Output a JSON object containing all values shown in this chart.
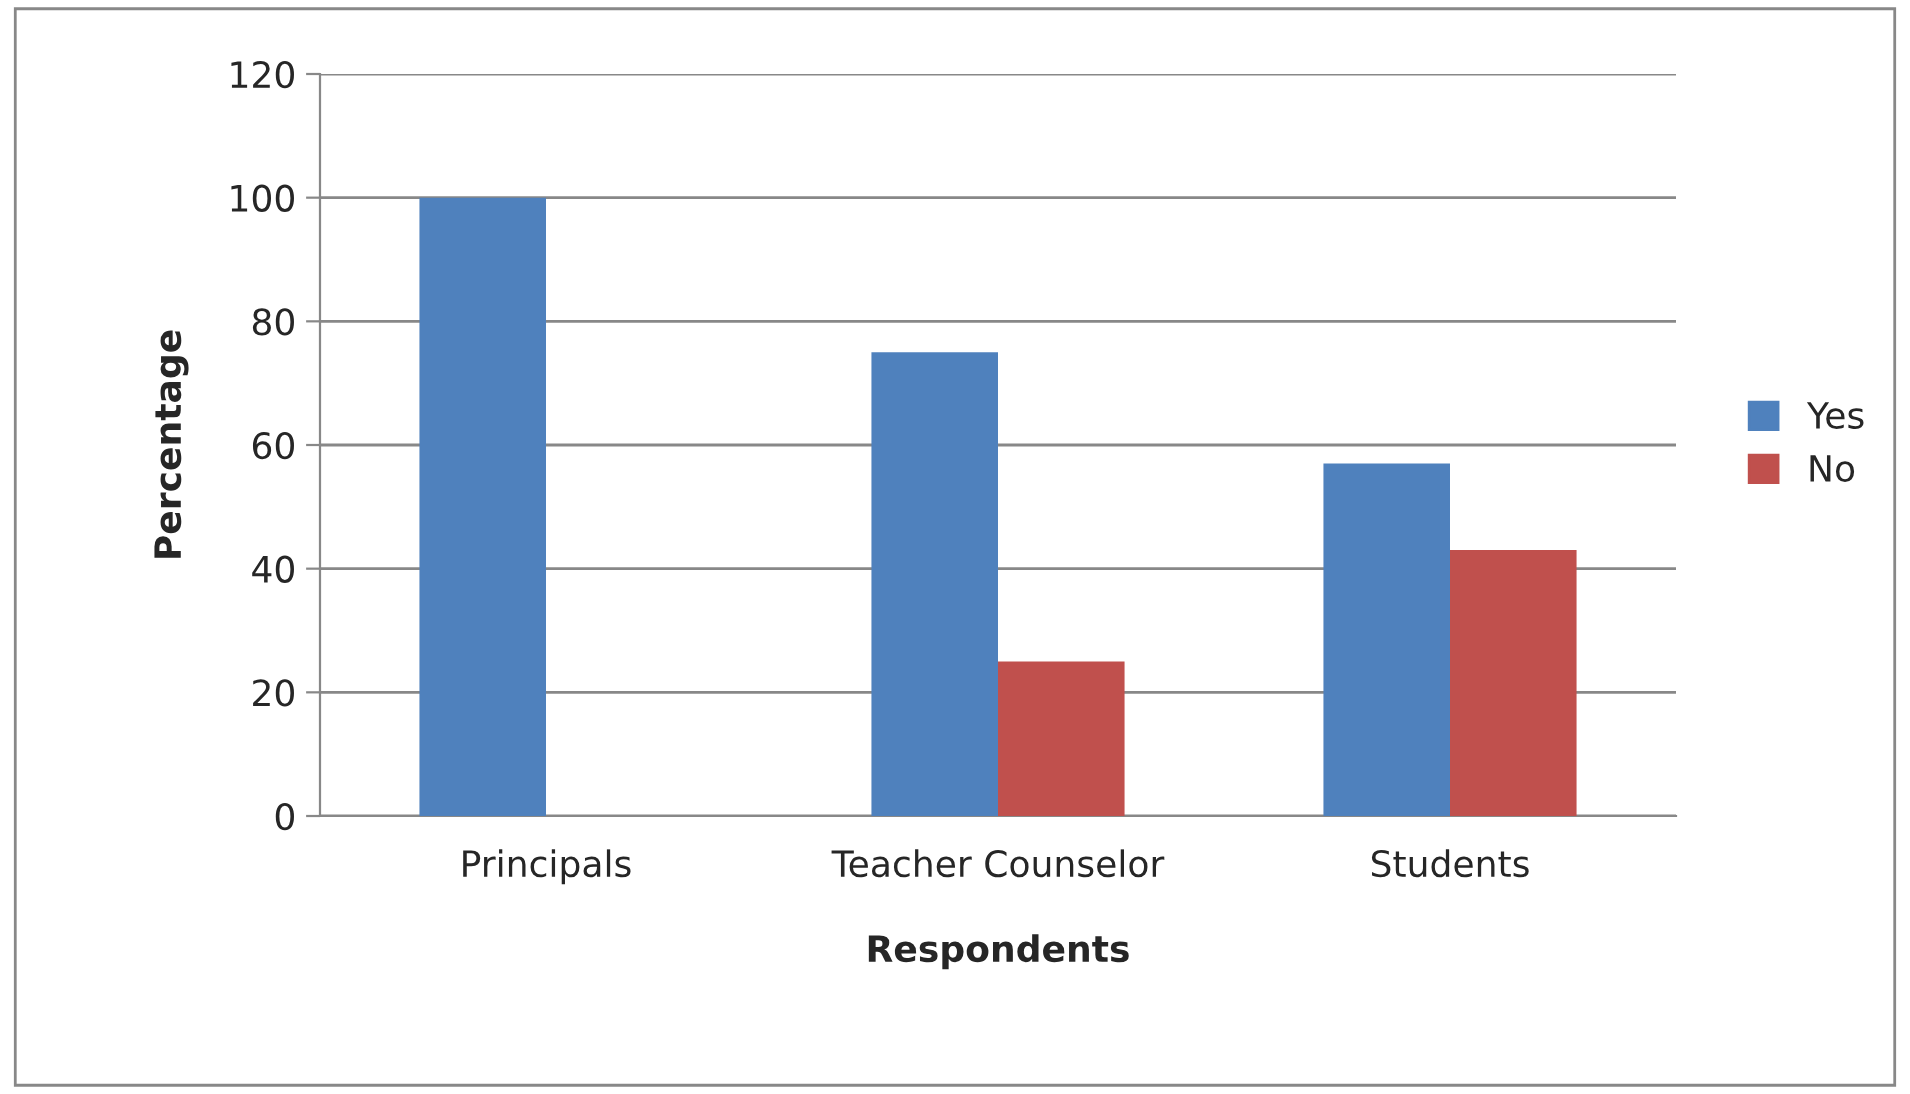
{
  "chart_data": {
    "type": "bar",
    "xlabel": "Respondents",
    "ylabel": "Percentage",
    "categories": [
      "Principals",
      "Teacher Counselor",
      "Students"
    ],
    "series": [
      {
        "name": "Yes",
        "color": "#4f81bd",
        "values": [
          100,
          75,
          57
        ]
      },
      {
        "name": "No",
        "color": "#c0504d",
        "values": [
          null,
          25,
          43
        ]
      }
    ],
    "ylim": [
      0,
      120
    ],
    "yticks": [
      0,
      20,
      40,
      60,
      80,
      100,
      120
    ],
    "grid": "y",
    "legend": "right"
  }
}
